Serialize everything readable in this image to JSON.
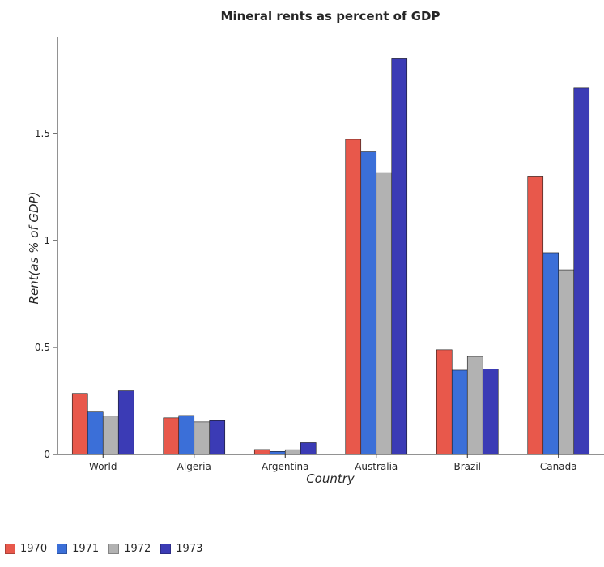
{
  "chart_data": {
    "type": "bar",
    "title": "Mineral rents as percent of GDP",
    "xlabel": "Country",
    "ylabel": "Rent(as % of GDP)",
    "categories": [
      "World",
      "Algeria",
      "Argentina",
      "Australia",
      "Brazil",
      "Canada"
    ],
    "ylim": [
      0,
      1.95
    ],
    "yticks": [
      0,
      0.5,
      1,
      1.5
    ],
    "ytick_labels": [
      "0",
      "0.5",
      "1",
      "1.5"
    ],
    "grid": false,
    "legend_position": "bottom-left",
    "series": [
      {
        "name": "1970",
        "color": "#e8584b",
        "values": [
          0.285,
          0.171,
          0.023,
          1.473,
          0.489,
          1.301
        ]
      },
      {
        "name": "1971",
        "color": "#3b6fd8",
        "values": [
          0.198,
          0.182,
          0.014,
          1.414,
          0.394,
          0.943
        ]
      },
      {
        "name": "1972",
        "color": "#b2b2b2",
        "values": [
          0.179,
          0.152,
          0.022,
          1.317,
          0.458,
          0.863
        ]
      },
      {
        "name": "1973",
        "color": "#3b3bb5",
        "values": [
          0.297,
          0.158,
          0.055,
          1.85,
          0.4,
          1.712
        ]
      }
    ]
  }
}
